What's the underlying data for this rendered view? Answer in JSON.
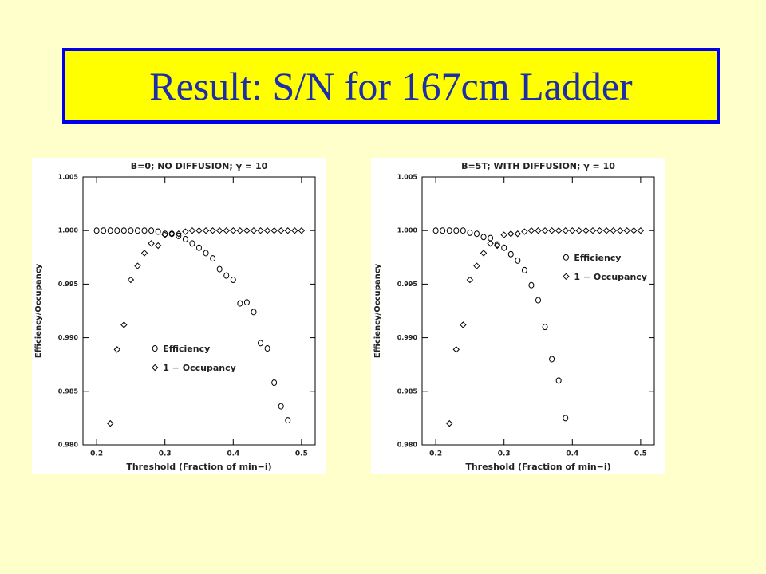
{
  "slide": {
    "title": "Result: S/N for 167cm Ladder"
  },
  "chart_data": [
    {
      "type": "scatter",
      "title": "B=0; NO DIFFUSION; γ = 10",
      "x_label": "Threshold (Fraction of min−i)",
      "y_label": "Efficiency/Occupancy",
      "xlim": [
        0.18,
        0.52
      ],
      "ylim": [
        0.98,
        1.005
      ],
      "xticks": [
        0.2,
        0.3,
        0.4,
        0.5
      ],
      "yticks": [
        {
          "value": 0.98,
          "label": "0.980"
        },
        0.985,
        {
          "value": 0.99,
          "label": "0.990"
        },
        0.995,
        {
          "value": 1.0,
          "label": "1.000"
        },
        1.005
      ],
      "legend": "lower left",
      "series": [
        {
          "name": "Efficiency",
          "color": "#000000",
          "marker": "circle",
          "x": [
            0.2,
            0.21,
            0.22,
            0.23,
            0.24,
            0.25,
            0.26,
            0.27,
            0.28,
            0.29,
            0.3,
            0.31,
            0.32,
            0.33,
            0.34,
            0.35,
            0.36,
            0.37,
            0.38,
            0.39,
            0.4,
            0.41,
            0.42,
            0.43,
            0.44,
            0.45,
            0.46,
            0.47,
            0.48
          ],
          "values": [
            1.0,
            1.0,
            1.0,
            1.0,
            1.0,
            1.0,
            1.0,
            1.0,
            1.0,
            0.9999,
            0.9997,
            0.9997,
            0.9995,
            0.9992,
            0.9988,
            0.9984,
            0.9979,
            0.9974,
            0.9964,
            0.9958,
            0.9954,
            0.9932,
            0.9933,
            0.9924,
            0.9895,
            0.989,
            0.9858,
            0.9836,
            0.9823
          ]
        },
        {
          "name": "1 − Occupancy",
          "color": "#000000",
          "marker": "diamond",
          "x": [
            0.22,
            0.23,
            0.24,
            0.25,
            0.26,
            0.27,
            0.28,
            0.29,
            0.3,
            0.31,
            0.32,
            0.33,
            0.34,
            0.35,
            0.36,
            0.37,
            0.38,
            0.39,
            0.4,
            0.41,
            0.42,
            0.43,
            0.44,
            0.45,
            0.46,
            0.47,
            0.48,
            0.49,
            0.5
          ],
          "values": [
            0.982,
            0.9889,
            0.9912,
            0.9954,
            0.9967,
            0.9979,
            0.9988,
            0.9986,
            0.9996,
            0.9997,
            0.9997,
            0.9999,
            1.0,
            1.0,
            1.0,
            1.0,
            1.0,
            1.0,
            1.0,
            1.0,
            1.0,
            1.0,
            1.0,
            1.0,
            1.0,
            1.0,
            1.0,
            1.0,
            1.0
          ]
        }
      ]
    },
    {
      "type": "scatter",
      "title": "B=5T; WITH DIFFUSION; γ = 10",
      "x_label": "Threshold (Fraction of min−i)",
      "y_label": "Efficiency/Occupancy",
      "xlim": [
        0.18,
        0.52
      ],
      "ylim": [
        0.98,
        1.005
      ],
      "xticks": [
        0.2,
        0.3,
        0.4,
        0.5
      ],
      "yticks": [
        {
          "value": 0.98,
          "label": "0.980"
        },
        0.985,
        {
          "value": 0.99,
          "label": "0.990"
        },
        0.995,
        {
          "value": 1.0,
          "label": "1.000"
        },
        1.005
      ],
      "legend": "upper right",
      "series": [
        {
          "name": "Efficiency",
          "color": "#000000",
          "marker": "circle",
          "x": [
            0.2,
            0.21,
            0.22,
            0.23,
            0.24,
            0.25,
            0.26,
            0.27,
            0.28,
            0.29,
            0.3,
            0.31,
            0.32,
            0.33,
            0.34,
            0.35,
            0.36,
            0.37,
            0.38,
            0.39
          ],
          "values": [
            1.0,
            1.0,
            1.0,
            1.0,
            1.0,
            0.9998,
            0.9997,
            0.9994,
            0.9993,
            0.9987,
            0.9984,
            0.9978,
            0.9972,
            0.9963,
            0.9949,
            0.9935,
            0.991,
            0.988,
            0.986,
            0.9825
          ]
        },
        {
          "name": "1 − Occupancy",
          "color": "#000000",
          "marker": "diamond",
          "x": [
            0.22,
            0.23,
            0.24,
            0.25,
            0.26,
            0.27,
            0.28,
            0.29,
            0.3,
            0.31,
            0.32,
            0.33,
            0.34,
            0.35,
            0.36,
            0.37,
            0.38,
            0.39,
            0.4,
            0.41,
            0.42,
            0.43,
            0.44,
            0.45,
            0.46,
            0.47,
            0.48,
            0.49,
            0.5
          ],
          "values": [
            0.982,
            0.9889,
            0.9912,
            0.9954,
            0.9967,
            0.9979,
            0.9988,
            0.9986,
            0.9996,
            0.9997,
            0.9997,
            0.9999,
            1.0,
            1.0,
            1.0,
            1.0,
            1.0,
            1.0,
            1.0,
            1.0,
            1.0,
            1.0,
            1.0,
            1.0,
            1.0,
            1.0,
            1.0,
            1.0,
            1.0
          ]
        }
      ]
    }
  ]
}
